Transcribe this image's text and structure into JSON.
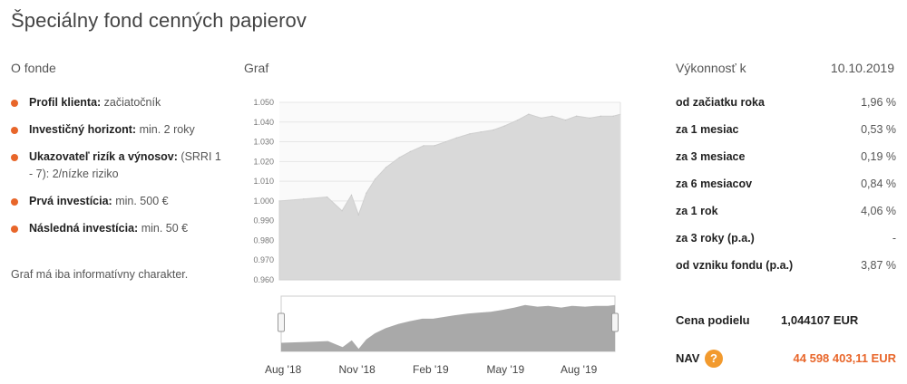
{
  "title": "Špeciálny fond cenných papierov",
  "about": {
    "heading": "O fonde",
    "items": [
      {
        "label": "Profil klienta:",
        "value": "začiatočník"
      },
      {
        "label": "Investičný horizont:",
        "value": "min. 2 roky"
      },
      {
        "label": "Ukazovateľ rizík a výnosov:",
        "value": "(SRRI 1 - 7): 2/nízke riziko"
      },
      {
        "label": "Prvá investícia:",
        "value": "min. 500 €"
      },
      {
        "label": "Následná investícia:",
        "value": "min. 50 €"
      }
    ],
    "note": "Graf má iba informatívny charakter."
  },
  "chart": {
    "heading": "Graf",
    "fill_color": "#d9d9d9",
    "navigator_color": "#a9a9a9",
    "chart_data": {
      "type": "area",
      "ylim": [
        0.96,
        1.05
      ],
      "yticks": [
        "1.050",
        "1.040",
        "1.030",
        "1.020",
        "1.010",
        "1.000",
        "0.990",
        "0.980",
        "0.970",
        "0.960"
      ],
      "x_labels": [
        "Aug '18",
        "Nov '18",
        "Feb '19",
        "May '19",
        "Aug '19"
      ],
      "series": [
        {
          "x": [
            "2018-08-01",
            "2018-09-01",
            "2018-10-01",
            "2018-10-20",
            "2018-11-01",
            "2018-11-10",
            "2018-11-20",
            "2018-12-01",
            "2018-12-15",
            "2019-01-01",
            "2019-01-15",
            "2019-02-01",
            "2019-02-15",
            "2019-03-01",
            "2019-03-15",
            "2019-04-01",
            "2019-04-15",
            "2019-05-01",
            "2019-05-15",
            "2019-06-01",
            "2019-06-15",
            "2019-07-01",
            "2019-07-15",
            "2019-08-01",
            "2019-08-15",
            "2019-09-01",
            "2019-09-15",
            "2019-10-01",
            "2019-10-10"
          ],
          "values": [
            1.0,
            1.001,
            1.002,
            0.995,
            1.003,
            0.993,
            1.004,
            1.011,
            1.017,
            1.022,
            1.025,
            1.028,
            1.028,
            1.03,
            1.032,
            1.034,
            1.035,
            1.036,
            1.038,
            1.041,
            1.044,
            1.042,
            1.043,
            1.041,
            1.043,
            1.042,
            1.043,
            1.043,
            1.044
          ]
        }
      ]
    }
  },
  "performance": {
    "heading": "Výkonnosť k",
    "date": "10.10.2019",
    "rows": [
      {
        "label": "od začiatku roka",
        "value": "1,96 %"
      },
      {
        "label": "za 1 mesiac",
        "value": "0,53 %"
      },
      {
        "label": "za 3 mesiace",
        "value": "0,19 %"
      },
      {
        "label": "za 6 mesiacov",
        "value": "0,84 %"
      },
      {
        "label": "za 1 rok",
        "value": "4,06 %"
      },
      {
        "label": "za 3 roky (p.a.)",
        "value": "-"
      },
      {
        "label": "od vzniku fondu (p.a.)",
        "value": "3,87 %"
      }
    ],
    "price_label": "Cena podielu",
    "price_value": "1,044107 EUR",
    "nav_label": "NAV",
    "nav_help": "?",
    "nav_value": "44 598 403,11 EUR",
    "accent": "#e8662a"
  }
}
